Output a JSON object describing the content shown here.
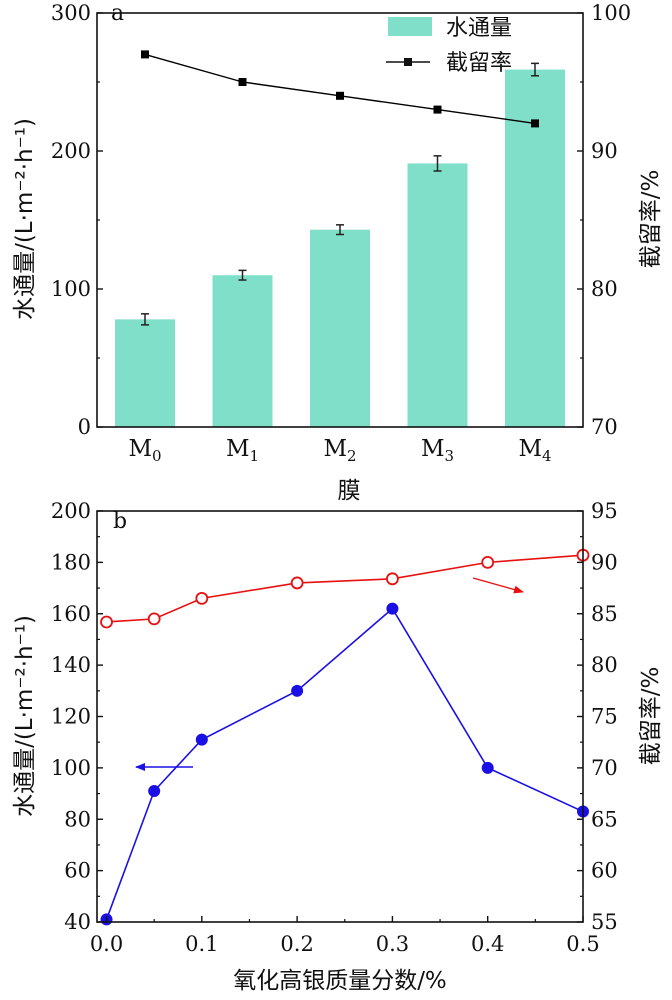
{
  "chart_data": [
    {
      "type": "bar",
      "panel_label": "a",
      "categories": [
        {
          "base": "M",
          "sub": "0"
        },
        {
          "base": "M",
          "sub": "1"
        },
        {
          "base": "M",
          "sub": "2"
        },
        {
          "base": "M",
          "sub": "3"
        },
        {
          "base": "M",
          "sub": "4"
        }
      ],
      "xlabel": "膜",
      "ylabel_left": "水通量/(L·m⁻²·h⁻¹)",
      "ylabel_right": "截留率/%",
      "ylim_left": [
        0,
        300
      ],
      "ylim_right": [
        70,
        100
      ],
      "yticks_left": [
        "0",
        "100",
        "200",
        "300"
      ],
      "yticks_right": [
        "70",
        "80",
        "90",
        "100"
      ],
      "series": [
        {
          "name": "水通量",
          "type": "bar",
          "axis": "left",
          "values": [
            78,
            110,
            143,
            191,
            259
          ],
          "errors": [
            4,
            3.5,
            3.5,
            5.5,
            4.5
          ]
        },
        {
          "name": "截留率",
          "type": "line",
          "axis": "right",
          "values": [
            97,
            95,
            94,
            93,
            92
          ]
        }
      ],
      "legend": "top-right",
      "colors": {
        "bar": "#80dfc8",
        "line": "#000000"
      }
    },
    {
      "type": "line",
      "panel_label": "b",
      "xlabel": "氧化高银质量分数/%",
      "ylabel_left": "水通量/(L·m⁻²·h⁻¹)",
      "ylabel_right": "截留率/%",
      "x": [
        0.0,
        0.05,
        0.1,
        0.2,
        0.3,
        0.4,
        0.5
      ],
      "xlim": [
        -0.01,
        0.5
      ],
      "xticks": [
        "0.0",
        "0.1",
        "0.2",
        "0.3",
        "0.4",
        "0.5"
      ],
      "ylim_left": [
        40,
        200
      ],
      "ylim_right": [
        55,
        95
      ],
      "yticks_left": [
        "40",
        "60",
        "80",
        "100",
        "120",
        "140",
        "160",
        "180",
        "200"
      ],
      "yticks_right": [
        "55",
        "60",
        "65",
        "70",
        "75",
        "80",
        "85",
        "90",
        "95"
      ],
      "series": [
        {
          "axis": "left",
          "values": [
            41,
            91,
            111,
            130,
            162,
            100,
            83
          ],
          "color": "#1a10e6",
          "marker": "filled-circle"
        },
        {
          "axis": "right",
          "values": [
            84.2,
            84.5,
            86.5,
            88,
            88.4,
            90,
            90.7
          ],
          "color": "#e81010",
          "marker": "open-circle"
        }
      ],
      "colors": {
        "flux": "#1a10e6",
        "rejection": "#e81010"
      }
    }
  ]
}
